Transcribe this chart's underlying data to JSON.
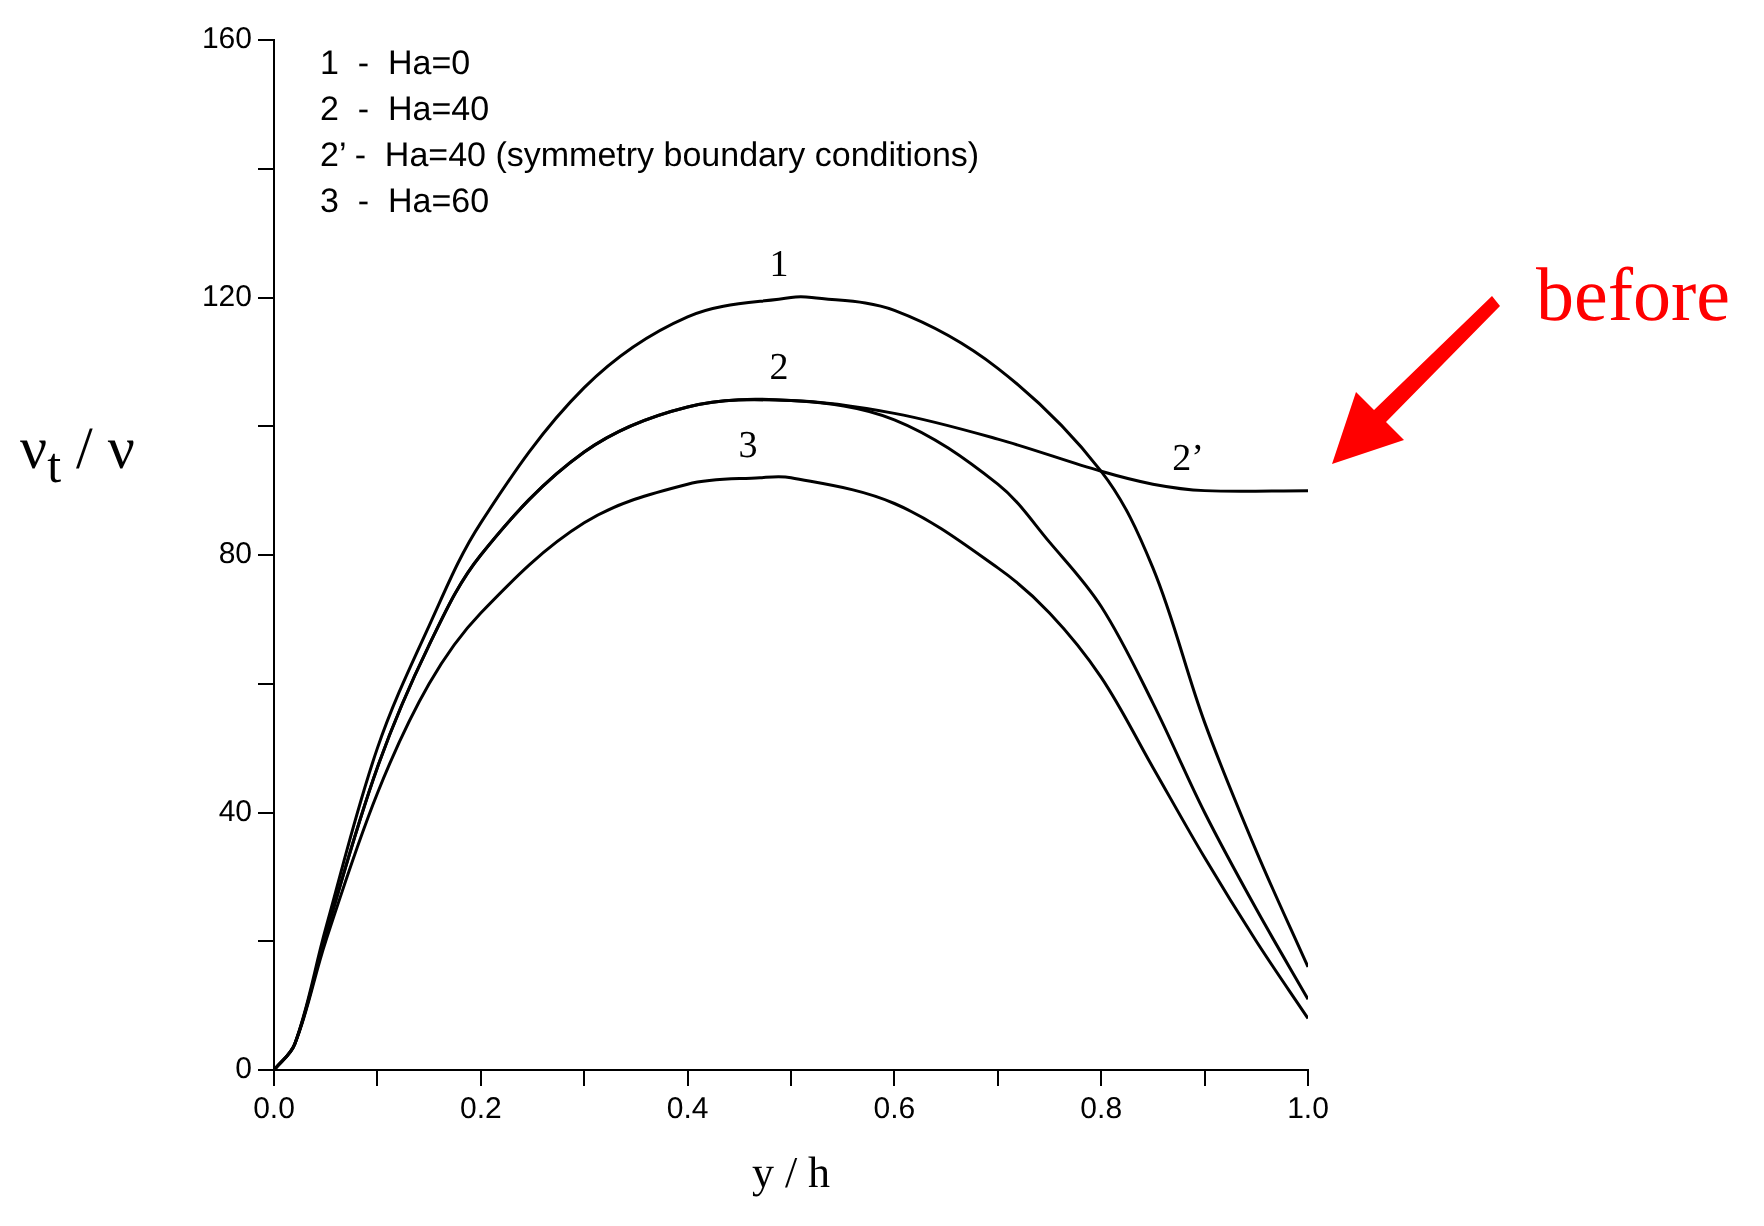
{
  "chart_data": {
    "type": "line",
    "xlabel": "y / h",
    "ylabel": "ν$_{t}$ / ν",
    "xlim": [
      0,
      1
    ],
    "ylim": [
      0,
      160
    ],
    "xticks": [
      {
        "value": 0,
        "label": "0.0"
      },
      {
        "value": 0.1,
        "label": null
      },
      {
        "value": 0.2,
        "label": "0.2"
      },
      {
        "value": 0.3,
        "label": null
      },
      {
        "value": 0.4,
        "label": "0.4"
      },
      {
        "value": 0.5,
        "label": null
      },
      {
        "value": 0.6,
        "label": "0.6"
      },
      {
        "value": 0.7,
        "label": null
      },
      {
        "value": 0.8,
        "label": "0.8"
      },
      {
        "value": 0.9,
        "label": null
      },
      {
        "value": 1,
        "label": "1.0"
      }
    ],
    "yticks": [
      0,
      {
        "value": 20,
        "label": null
      },
      40,
      {
        "value": 60,
        "label": null
      },
      80,
      {
        "value": 100,
        "label": null
      },
      120,
      {
        "value": 140,
        "label": null
      },
      160
    ],
    "grid": false,
    "legend": false,
    "marker": "none",
    "line_style": "solid",
    "annotations": [
      "1  -  Ha=0",
      "2  -  Ha=40",
      "2’ -  Ha=40 (symmetry boundary conditions)",
      "3  -  Ha=60",
      "before"
    ],
    "series": [
      {
        "name": "1",
        "color": "#000000",
        "x": [
          0,
          0.02,
          0.05,
          0.1,
          0.15,
          0.2,
          0.3,
          0.4,
          0.5,
          0.52,
          0.6,
          0.7,
          0.8,
          0.85,
          0.9,
          0.95,
          1
        ],
        "values": [
          0,
          4,
          22,
          50,
          69,
          85,
          106,
          117,
          120,
          120,
          118,
          109,
          93,
          78,
          54,
          34,
          16
        ]
      },
      {
        "name": "2",
        "color": "#000000",
        "x": [
          0,
          0.02,
          0.05,
          0.1,
          0.15,
          0.2,
          0.3,
          0.4,
          0.5,
          0.6,
          0.7,
          0.75,
          0.8,
          0.85,
          0.9,
          0.95,
          1
        ],
        "values": [
          0,
          4,
          21,
          47,
          66,
          80,
          96,
          103,
          104,
          101,
          91,
          82,
          72,
          57,
          40,
          25,
          11
        ]
      },
      {
        "name": "2’",
        "color": "#000000",
        "x": [
          0,
          0.02,
          0.05,
          0.1,
          0.15,
          0.2,
          0.3,
          0.4,
          0.5,
          0.6,
          0.7,
          0.8,
          0.85,
          0.9,
          1
        ],
        "values": [
          0,
          4,
          21,
          47,
          66,
          80,
          96,
          103,
          104,
          102,
          98,
          93,
          91,
          90,
          90
        ]
      },
      {
        "name": "3",
        "color": "#000000",
        "x": [
          0,
          0.02,
          0.05,
          0.1,
          0.15,
          0.2,
          0.3,
          0.4,
          0.47,
          0.5,
          0.6,
          0.7,
          0.75,
          0.8,
          0.85,
          0.9,
          0.95,
          1
        ],
        "values": [
          0,
          4,
          20,
          43,
          60,
          71,
          85,
          91,
          92,
          92,
          88,
          78,
          71,
          61,
          47,
          33,
          20,
          8
        ]
      }
    ]
  }
}
